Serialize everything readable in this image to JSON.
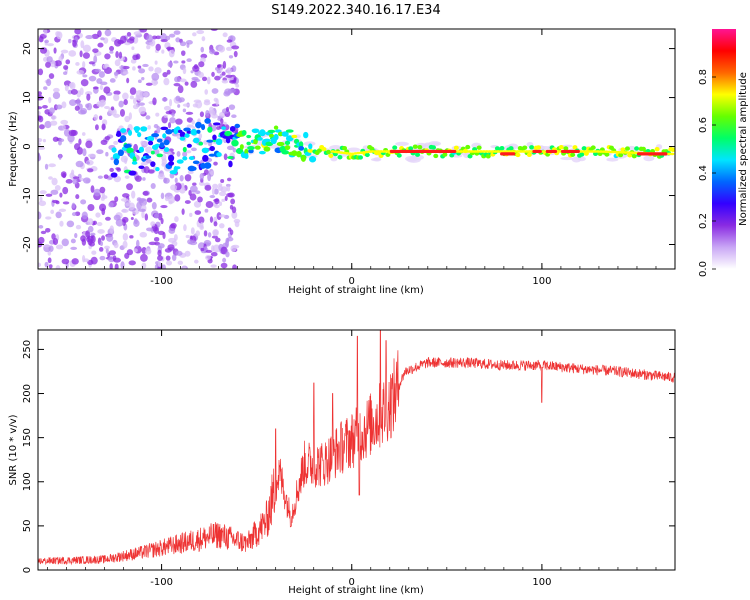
{
  "title": "S149.2022.340.16.17.E34",
  "chart_data": [
    {
      "type": "heatmap",
      "xlabel": "Height of straight line (km)",
      "ylabel": "Frequency (Hz)",
      "xlim": [
        -165,
        170
      ],
      "ylim": [
        -25,
        24
      ],
      "xticks": [
        -100,
        0,
        100
      ],
      "yticks": [
        -20,
        -10,
        0,
        10,
        20
      ],
      "colorbar": {
        "label": "Normalized spectral amplitude",
        "range": [
          0,
          1
        ],
        "ticks": [
          "0.0",
          "0.2",
          "0.4",
          "0.6",
          "0.8"
        ],
        "colormap": [
          "#ffffff",
          "#c9a6f5",
          "#8a2be2",
          "#3300ff",
          "#0066ff",
          "#00e5ff",
          "#00ff66",
          "#66ff00",
          "#ffff00",
          "#ff6600",
          "#ff0000",
          "#ff1493"
        ]
      },
      "ridge": [
        {
          "x": -110,
          "f": -1.0
        },
        {
          "x": -90,
          "f": -0.5
        },
        {
          "x": -70,
          "f": 1.5
        },
        {
          "x": -55,
          "f": 0.5
        },
        {
          "x": -40,
          "f": 1.5
        },
        {
          "x": -25,
          "f": 0.0
        },
        {
          "x": -10,
          "f": -1.0
        },
        {
          "x": 0,
          "f": -1.5
        },
        {
          "x": 10,
          "f": -1.0
        },
        {
          "x": 50,
          "f": -1.0
        },
        {
          "x": 90,
          "f": -1.0
        },
        {
          "x": 130,
          "f": -1.0
        },
        {
          "x": 165,
          "f": -1.5
        }
      ],
      "hot_segments": [
        {
          "x_start": 20,
          "x_end": 55,
          "f": -1.0
        },
        {
          "x_start": 78,
          "x_end": 86,
          "f": -1.5
        },
        {
          "x_start": 95,
          "x_end": 100,
          "f": -1.0
        },
        {
          "x_start": 102,
          "x_end": 108,
          "f": -1.0
        },
        {
          "x_start": 110,
          "x_end": 120,
          "f": -1.0
        },
        {
          "x_start": 150,
          "x_end": 166,
          "f": -1.5
        }
      ]
    },
    {
      "type": "line",
      "xlabel": "Height of straight line (km)",
      "ylabel": "SNR (10 * v/v)",
      "xlim": [
        -165,
        170
      ],
      "ylim": [
        0,
        272
      ],
      "xticks": [
        -100,
        0,
        100
      ],
      "yticks": [
        0,
        50,
        100,
        150,
        200,
        250
      ],
      "color": "#ee3333",
      "envelope": [
        {
          "x": -165,
          "y": 10
        },
        {
          "x": -130,
          "y": 12
        },
        {
          "x": -110,
          "y": 20
        },
        {
          "x": -90,
          "y": 30
        },
        {
          "x": -70,
          "y": 40
        },
        {
          "x": -55,
          "y": 30
        },
        {
          "x": -45,
          "y": 55
        },
        {
          "x": -38,
          "y": 110
        },
        {
          "x": -32,
          "y": 60
        },
        {
          "x": -25,
          "y": 120
        },
        {
          "x": -15,
          "y": 120
        },
        {
          "x": -5,
          "y": 140
        },
        {
          "x": 5,
          "y": 155
        },
        {
          "x": 15,
          "y": 175
        },
        {
          "x": 22,
          "y": 195
        },
        {
          "x": 28,
          "y": 225
        },
        {
          "x": 40,
          "y": 235
        },
        {
          "x": 60,
          "y": 235
        },
        {
          "x": 80,
          "y": 232
        },
        {
          "x": 100,
          "y": 232
        },
        {
          "x": 120,
          "y": 228
        },
        {
          "x": 140,
          "y": 225
        },
        {
          "x": 160,
          "y": 220
        },
        {
          "x": 170,
          "y": 218
        }
      ],
      "spikes": [
        {
          "x": -40,
          "y": 160
        },
        {
          "x": -20,
          "y": 212
        },
        {
          "x": -10,
          "y": 200
        },
        {
          "x": 3,
          "y": 265
        },
        {
          "x": 15,
          "y": 272
        },
        {
          "x": 18,
          "y": 260
        },
        {
          "x": 4,
          "y": 85
        },
        {
          "x": 100,
          "y": 190
        }
      ]
    }
  ]
}
